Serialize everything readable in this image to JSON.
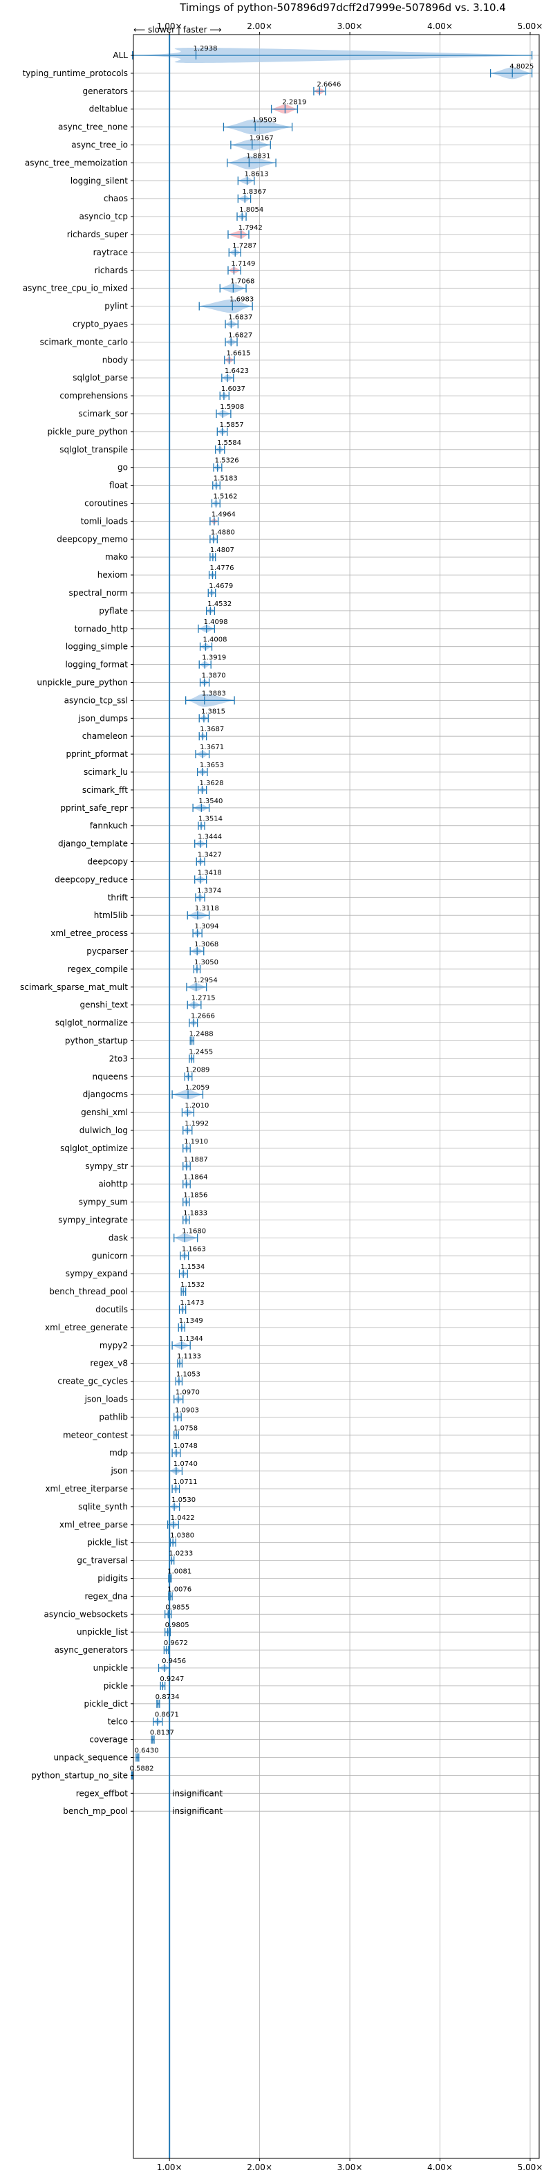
{
  "chart_data": {
    "type": "violin",
    "title": "Timings of python-507896d97dcff2d7999e-507896d vs. 3.10.4",
    "direction_label": "⟵ slower | faster ⟶",
    "xlabel": "",
    "ylabel": "",
    "xlim": [
      0.6,
      5.1
    ],
    "x_ticks": [
      1.0,
      2.0,
      3.0,
      4.0,
      5.0
    ],
    "x_tick_labels": [
      "1.00×",
      "2.00×",
      "3.00×",
      "4.00×",
      "5.00×"
    ],
    "reference_line": 1.0,
    "grid": true,
    "colors": {
      "violin": "#a9c9e8",
      "violin_significant_slow": "#f4a9b0",
      "line": "#1f77b4",
      "grid": "#b0b0b0"
    },
    "insignificant_label": "insignificant",
    "benchmarks": [
      {
        "name": "ALL",
        "value": 1.2938,
        "min": 0.59,
        "max": 5.02,
        "label": "1.2938"
      },
      {
        "name": "typing_runtime_protocols",
        "value": 4.8025,
        "min": 4.56,
        "max": 5.02,
        "label": "4.8025"
      },
      {
        "name": "generators",
        "value": 2.6646,
        "min": 2.6,
        "max": 2.73,
        "label": "2.6646",
        "highlight": true
      },
      {
        "name": "deltablue",
        "value": 2.2819,
        "min": 2.13,
        "max": 2.42,
        "label": "2.2819",
        "highlight": true
      },
      {
        "name": "async_tree_none",
        "value": 1.9503,
        "min": 1.6,
        "max": 2.36,
        "label": "1.9503"
      },
      {
        "name": "async_tree_io",
        "value": 1.9167,
        "min": 1.68,
        "max": 2.12,
        "label": "1.9167"
      },
      {
        "name": "async_tree_memoization",
        "value": 1.8831,
        "min": 1.64,
        "max": 2.18,
        "label": "1.8831"
      },
      {
        "name": "logging_silent",
        "value": 1.8613,
        "min": 1.76,
        "max": 1.94,
        "label": "1.8613"
      },
      {
        "name": "chaos",
        "value": 1.8367,
        "min": 1.76,
        "max": 1.9,
        "label": "1.8367"
      },
      {
        "name": "asyncio_tcp",
        "value": 1.8054,
        "min": 1.75,
        "max": 1.85,
        "label": "1.8054"
      },
      {
        "name": "richards_super",
        "value": 1.7942,
        "min": 1.65,
        "max": 1.88,
        "label": "1.7942",
        "highlight": true
      },
      {
        "name": "raytrace",
        "value": 1.7287,
        "min": 1.66,
        "max": 1.79,
        "label": "1.7287"
      },
      {
        "name": "richards",
        "value": 1.7149,
        "min": 1.65,
        "max": 1.79,
        "label": "1.7149",
        "highlight": true
      },
      {
        "name": "async_tree_cpu_io_mixed",
        "value": 1.7068,
        "min": 1.56,
        "max": 1.85,
        "label": "1.7068"
      },
      {
        "name": "pylint",
        "value": 1.6983,
        "min": 1.33,
        "max": 1.92,
        "label": "1.6983"
      },
      {
        "name": "crypto_pyaes",
        "value": 1.6837,
        "min": 1.62,
        "max": 1.76,
        "label": "1.6837"
      },
      {
        "name": "scimark_monte_carlo",
        "value": 1.6827,
        "min": 1.62,
        "max": 1.75,
        "label": "1.6827"
      },
      {
        "name": "nbody",
        "value": 1.6615,
        "min": 1.61,
        "max": 1.72,
        "label": "1.6615",
        "highlight": true
      },
      {
        "name": "sqlglot_parse",
        "value": 1.6423,
        "min": 1.58,
        "max": 1.71,
        "label": "1.6423"
      },
      {
        "name": "comprehensions",
        "value": 1.6037,
        "min": 1.56,
        "max": 1.66,
        "label": "1.6037"
      },
      {
        "name": "scimark_sor",
        "value": 1.5908,
        "min": 1.52,
        "max": 1.68,
        "label": "1.5908"
      },
      {
        "name": "pickle_pure_python",
        "value": 1.5857,
        "min": 1.53,
        "max": 1.64,
        "label": "1.5857"
      },
      {
        "name": "sqlglot_transpile",
        "value": 1.5584,
        "min": 1.51,
        "max": 1.61,
        "label": "1.5584"
      },
      {
        "name": "go",
        "value": 1.5326,
        "min": 1.49,
        "max": 1.58,
        "label": "1.5326"
      },
      {
        "name": "float",
        "value": 1.5183,
        "min": 1.48,
        "max": 1.56,
        "label": "1.5183"
      },
      {
        "name": "coroutines",
        "value": 1.5162,
        "min": 1.47,
        "max": 1.56,
        "label": "1.5162"
      },
      {
        "name": "tomli_loads",
        "value": 1.4964,
        "min": 1.45,
        "max": 1.54,
        "label": "1.4964",
        "highlight": true
      },
      {
        "name": "deepcopy_memo",
        "value": 1.488,
        "min": 1.45,
        "max": 1.53,
        "label": "1.4880"
      },
      {
        "name": "mako",
        "value": 1.4807,
        "min": 1.45,
        "max": 1.51,
        "label": "1.4807"
      },
      {
        "name": "hexiom",
        "value": 1.4776,
        "min": 1.44,
        "max": 1.51,
        "label": "1.4776"
      },
      {
        "name": "spectral_norm",
        "value": 1.4679,
        "min": 1.43,
        "max": 1.51,
        "label": "1.4679"
      },
      {
        "name": "pyflate",
        "value": 1.4532,
        "min": 1.41,
        "max": 1.5,
        "label": "1.4532"
      },
      {
        "name": "tornado_http",
        "value": 1.4098,
        "min": 1.32,
        "max": 1.5,
        "label": "1.4098"
      },
      {
        "name": "logging_simple",
        "value": 1.4008,
        "min": 1.34,
        "max": 1.47,
        "label": "1.4008"
      },
      {
        "name": "logging_format",
        "value": 1.3919,
        "min": 1.33,
        "max": 1.46,
        "label": "1.3919"
      },
      {
        "name": "unpickle_pure_python",
        "value": 1.387,
        "min": 1.34,
        "max": 1.44,
        "label": "1.3870"
      },
      {
        "name": "asyncio_tcp_ssl",
        "value": 1.3883,
        "min": 1.18,
        "max": 1.72,
        "label": "1.3883"
      },
      {
        "name": "json_dumps",
        "value": 1.3815,
        "min": 1.33,
        "max": 1.43,
        "label": "1.3815"
      },
      {
        "name": "chameleon",
        "value": 1.3687,
        "min": 1.33,
        "max": 1.41,
        "label": "1.3687"
      },
      {
        "name": "pprint_pformat",
        "value": 1.3671,
        "min": 1.29,
        "max": 1.44,
        "label": "1.3671"
      },
      {
        "name": "scimark_lu",
        "value": 1.3653,
        "min": 1.31,
        "max": 1.42,
        "label": "1.3653"
      },
      {
        "name": "scimark_fft",
        "value": 1.3628,
        "min": 1.32,
        "max": 1.41,
        "label": "1.3628"
      },
      {
        "name": "pprint_safe_repr",
        "value": 1.354,
        "min": 1.26,
        "max": 1.44,
        "label": "1.3540"
      },
      {
        "name": "fannkuch",
        "value": 1.3514,
        "min": 1.32,
        "max": 1.39,
        "label": "1.3514"
      },
      {
        "name": "django_template",
        "value": 1.3444,
        "min": 1.28,
        "max": 1.41,
        "label": "1.3444"
      },
      {
        "name": "deepcopy",
        "value": 1.3427,
        "min": 1.3,
        "max": 1.39,
        "label": "1.3427"
      },
      {
        "name": "deepcopy_reduce",
        "value": 1.3418,
        "min": 1.28,
        "max": 1.41,
        "label": "1.3418"
      },
      {
        "name": "thrift",
        "value": 1.3374,
        "min": 1.29,
        "max": 1.39,
        "label": "1.3374"
      },
      {
        "name": "html5lib",
        "value": 1.3118,
        "min": 1.2,
        "max": 1.44,
        "label": "1.3118"
      },
      {
        "name": "xml_etree_process",
        "value": 1.3094,
        "min": 1.26,
        "max": 1.36,
        "label": "1.3094"
      },
      {
        "name": "pycparser",
        "value": 1.3068,
        "min": 1.23,
        "max": 1.38,
        "label": "1.3068"
      },
      {
        "name": "regex_compile",
        "value": 1.305,
        "min": 1.27,
        "max": 1.34,
        "label": "1.3050"
      },
      {
        "name": "scimark_sparse_mat_mult",
        "value": 1.2954,
        "min": 1.19,
        "max": 1.41,
        "label": "1.2954"
      },
      {
        "name": "genshi_text",
        "value": 1.2715,
        "min": 1.2,
        "max": 1.35,
        "label": "1.2715"
      },
      {
        "name": "sqlglot_normalize",
        "value": 1.2666,
        "min": 1.22,
        "max": 1.31,
        "label": "1.2666"
      },
      {
        "name": "python_startup",
        "value": 1.2488,
        "min": 1.23,
        "max": 1.27,
        "label": "1.2488"
      },
      {
        "name": "2to3",
        "value": 1.2455,
        "min": 1.22,
        "max": 1.27,
        "label": "1.2455"
      },
      {
        "name": "nqueens",
        "value": 1.2089,
        "min": 1.17,
        "max": 1.25,
        "label": "1.2089"
      },
      {
        "name": "djangocms",
        "value": 1.2059,
        "min": 1.03,
        "max": 1.37,
        "label": "1.2059"
      },
      {
        "name": "genshi_xml",
        "value": 1.201,
        "min": 1.14,
        "max": 1.27,
        "label": "1.2010"
      },
      {
        "name": "dulwich_log",
        "value": 1.1992,
        "min": 1.15,
        "max": 1.25,
        "label": "1.1992"
      },
      {
        "name": "sqlglot_optimize",
        "value": 1.191,
        "min": 1.15,
        "max": 1.23,
        "label": "1.1910"
      },
      {
        "name": "sympy_str",
        "value": 1.1887,
        "min": 1.15,
        "max": 1.23,
        "label": "1.1887"
      },
      {
        "name": "aiohttp",
        "value": 1.1864,
        "min": 1.15,
        "max": 1.23,
        "label": "1.1864"
      },
      {
        "name": "sympy_sum",
        "value": 1.1856,
        "min": 1.15,
        "max": 1.22,
        "label": "1.1856"
      },
      {
        "name": "sympy_integrate",
        "value": 1.1833,
        "min": 1.15,
        "max": 1.22,
        "label": "1.1833"
      },
      {
        "name": "dask",
        "value": 1.168,
        "min": 1.05,
        "max": 1.31,
        "label": "1.1680"
      },
      {
        "name": "gunicorn",
        "value": 1.1663,
        "min": 1.12,
        "max": 1.21,
        "label": "1.1663"
      },
      {
        "name": "sympy_expand",
        "value": 1.1534,
        "min": 1.11,
        "max": 1.2,
        "label": "1.1534"
      },
      {
        "name": "bench_thread_pool",
        "value": 1.1532,
        "min": 1.13,
        "max": 1.18,
        "label": "1.1532"
      },
      {
        "name": "docutils",
        "value": 1.1473,
        "min": 1.11,
        "max": 1.18,
        "label": "1.1473"
      },
      {
        "name": "xml_etree_generate",
        "value": 1.1349,
        "min": 1.1,
        "max": 1.17,
        "label": "1.1349"
      },
      {
        "name": "mypy2",
        "value": 1.1344,
        "min": 1.03,
        "max": 1.23,
        "label": "1.1344"
      },
      {
        "name": "regex_v8",
        "value": 1.1133,
        "min": 1.09,
        "max": 1.14,
        "label": "1.1133"
      },
      {
        "name": "create_gc_cycles",
        "value": 1.1053,
        "min": 1.07,
        "max": 1.14,
        "label": "1.1053"
      },
      {
        "name": "json_loads",
        "value": 1.097,
        "min": 1.05,
        "max": 1.15,
        "label": "1.0970"
      },
      {
        "name": "pathlib",
        "value": 1.0903,
        "min": 1.05,
        "max": 1.13,
        "label": "1.0903"
      },
      {
        "name": "meteor_contest",
        "value": 1.0758,
        "min": 1.05,
        "max": 1.1,
        "label": "1.0758"
      },
      {
        "name": "mdp",
        "value": 1.0748,
        "min": 1.03,
        "max": 1.12,
        "label": "1.0748"
      },
      {
        "name": "json",
        "value": 1.074,
        "min": 1.0,
        "max": 1.14,
        "label": "1.0740"
      },
      {
        "name": "xml_etree_iterparse",
        "value": 1.0711,
        "min": 1.03,
        "max": 1.11,
        "label": "1.0711"
      },
      {
        "name": "sqlite_synth",
        "value": 1.053,
        "min": 1.0,
        "max": 1.11,
        "label": "1.0530"
      },
      {
        "name": "xml_etree_parse",
        "value": 1.0422,
        "min": 0.98,
        "max": 1.1,
        "label": "1.0422"
      },
      {
        "name": "pickle_list",
        "value": 1.038,
        "min": 1.01,
        "max": 1.07,
        "label": "1.0380"
      },
      {
        "name": "gc_traversal",
        "value": 1.0233,
        "min": 1.0,
        "max": 1.05,
        "label": "1.0233"
      },
      {
        "name": "pidigits",
        "value": 1.0081,
        "min": 0.99,
        "max": 1.02,
        "label": "1.0081"
      },
      {
        "name": "regex_dna",
        "value": 1.0076,
        "min": 0.99,
        "max": 1.03,
        "label": "1.0076"
      },
      {
        "name": "asyncio_websockets",
        "value": 0.9855,
        "min": 0.95,
        "max": 1.02,
        "label": "0.9855"
      },
      {
        "name": "unpickle_list",
        "value": 0.9805,
        "min": 0.95,
        "max": 1.01,
        "label": "0.9805"
      },
      {
        "name": "async_generators",
        "value": 0.9672,
        "min": 0.94,
        "max": 0.99,
        "label": "0.9672"
      },
      {
        "name": "unpickle",
        "value": 0.9456,
        "min": 0.88,
        "max": 1.0,
        "label": "0.9456"
      },
      {
        "name": "pickle",
        "value": 0.9247,
        "min": 0.9,
        "max": 0.95,
        "label": "0.9247"
      },
      {
        "name": "pickle_dict",
        "value": 0.8734,
        "min": 0.86,
        "max": 0.89,
        "label": "0.8734"
      },
      {
        "name": "telco",
        "value": 0.8671,
        "min": 0.82,
        "max": 0.92,
        "label": "0.8671"
      },
      {
        "name": "coverage",
        "value": 0.8137,
        "min": 0.8,
        "max": 0.83,
        "label": "0.8137"
      },
      {
        "name": "unpack_sequence",
        "value": 0.643,
        "min": 0.63,
        "max": 0.66,
        "label": "0.6430"
      },
      {
        "name": "python_startup_no_site",
        "value": 0.5882,
        "min": 0.58,
        "max": 0.6,
        "label": "0.5882"
      },
      {
        "name": "regex_effbot",
        "insignificant": true
      },
      {
        "name": "bench_mp_pool",
        "insignificant": true
      }
    ]
  }
}
